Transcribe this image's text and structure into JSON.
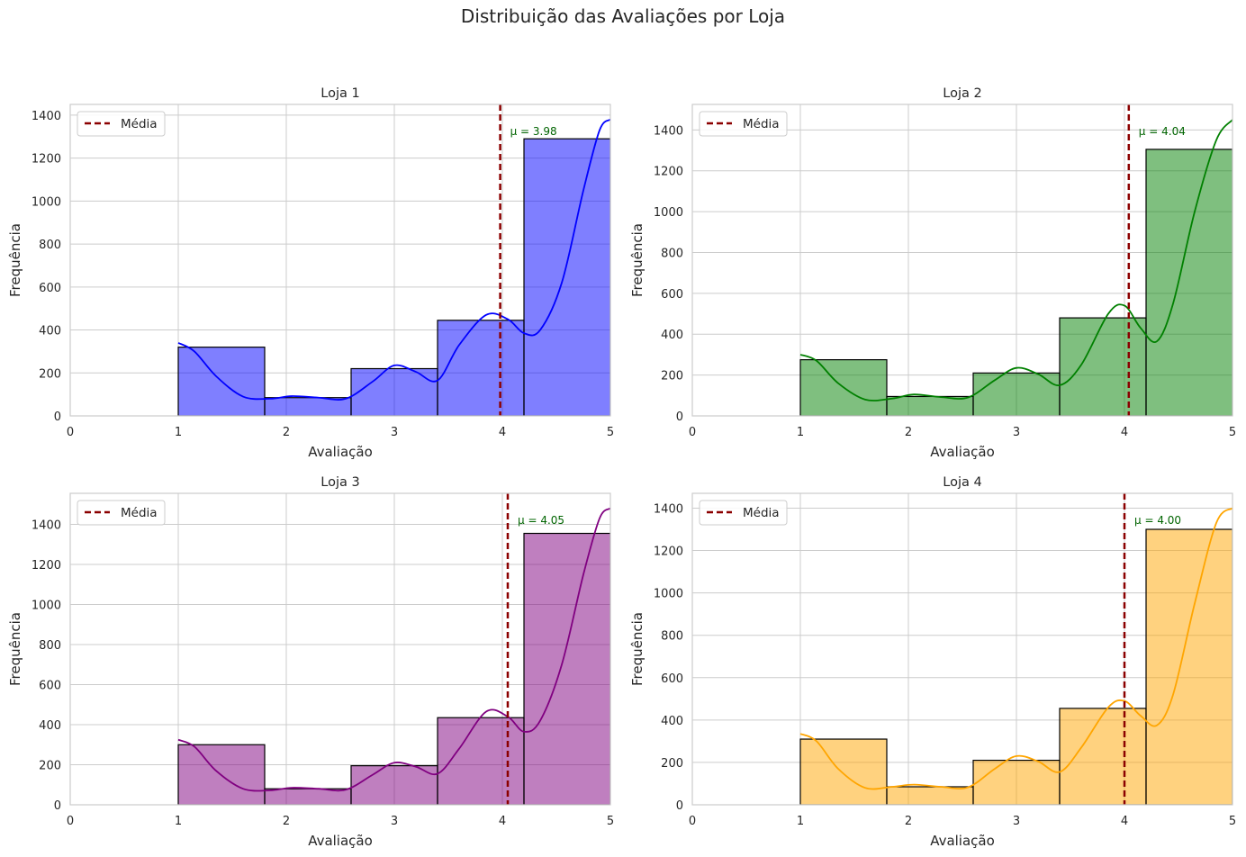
{
  "figure_title": "Distribuição das Avaliações por Loja",
  "colors": {
    "mean_line": "#8b0000",
    "mean_text": "#006400",
    "grid": "#cccccc",
    "bar_edge": "#000000"
  },
  "chart_data": [
    {
      "type": "bar",
      "title": "Loja 1",
      "xlabel": "Avaliação",
      "ylabel": "Frequência",
      "color": "#0000ff",
      "bin_edges": [
        1,
        1.8,
        2.6,
        3.4,
        4.2,
        5
      ],
      "values": [
        320,
        85,
        220,
        445,
        1290
      ],
      "kde": [
        [
          1.0,
          340
        ],
        [
          1.15,
          300
        ],
        [
          1.35,
          185
        ],
        [
          1.6,
          90
        ],
        [
          1.85,
          80
        ],
        [
          2.05,
          92
        ],
        [
          2.3,
          85
        ],
        [
          2.55,
          80
        ],
        [
          2.8,
          160
        ],
        [
          3.0,
          235
        ],
        [
          3.2,
          205
        ],
        [
          3.4,
          165
        ],
        [
          3.6,
          330
        ],
        [
          3.85,
          470
        ],
        [
          4.05,
          450
        ],
        [
          4.2,
          385
        ],
        [
          4.35,
          400
        ],
        [
          4.55,
          620
        ],
        [
          4.75,
          1050
        ],
        [
          4.9,
          1330
        ],
        [
          5.0,
          1380
        ]
      ],
      "mean": 3.98,
      "mean_label": "μ = 3.98",
      "legend_label": "Média",
      "xlim": [
        0,
        5
      ],
      "ylim": [
        0,
        1450
      ],
      "xticks": [
        0,
        1,
        2,
        3,
        4,
        5
      ],
      "yticks": [
        0,
        200,
        400,
        600,
        800,
        1000,
        1200,
        1400
      ]
    },
    {
      "type": "bar",
      "title": "Loja 2",
      "xlabel": "Avaliação",
      "ylabel": "Frequência",
      "color": "#008000",
      "bin_edges": [
        1,
        1.8,
        2.6,
        3.4,
        4.2,
        5
      ],
      "values": [
        275,
        95,
        210,
        480,
        1305
      ],
      "kde": [
        [
          1.0,
          300
        ],
        [
          1.15,
          270
        ],
        [
          1.35,
          160
        ],
        [
          1.6,
          80
        ],
        [
          1.85,
          85
        ],
        [
          2.05,
          105
        ],
        [
          2.3,
          92
        ],
        [
          2.55,
          90
        ],
        [
          2.8,
          175
        ],
        [
          3.0,
          235
        ],
        [
          3.2,
          205
        ],
        [
          3.4,
          150
        ],
        [
          3.6,
          250
        ],
        [
          3.85,
          500
        ],
        [
          4.0,
          540
        ],
        [
          4.15,
          430
        ],
        [
          4.3,
          365
        ],
        [
          4.45,
          550
        ],
        [
          4.65,
          1000
        ],
        [
          4.85,
          1350
        ],
        [
          5.0,
          1450
        ]
      ],
      "mean": 4.04,
      "mean_label": "μ = 4.04",
      "legend_label": "Média",
      "xlim": [
        0,
        5
      ],
      "ylim": [
        0,
        1525
      ],
      "xticks": [
        0,
        1,
        2,
        3,
        4,
        5
      ],
      "yticks": [
        0,
        200,
        400,
        600,
        800,
        1000,
        1200,
        1400
      ]
    },
    {
      "type": "bar",
      "title": "Loja 3",
      "xlabel": "Avaliação",
      "ylabel": "Frequência",
      "color": "#800080",
      "bin_edges": [
        1,
        1.8,
        2.6,
        3.4,
        4.2,
        5
      ],
      "values": [
        300,
        80,
        195,
        435,
        1355
      ],
      "kde": [
        [
          1.0,
          325
        ],
        [
          1.15,
          290
        ],
        [
          1.35,
          170
        ],
        [
          1.6,
          80
        ],
        [
          1.85,
          72
        ],
        [
          2.05,
          85
        ],
        [
          2.3,
          80
        ],
        [
          2.55,
          75
        ],
        [
          2.8,
          150
        ],
        [
          3.0,
          210
        ],
        [
          3.2,
          190
        ],
        [
          3.4,
          155
        ],
        [
          3.6,
          280
        ],
        [
          3.85,
          465
        ],
        [
          4.05,
          440
        ],
        [
          4.2,
          365
        ],
        [
          4.35,
          420
        ],
        [
          4.55,
          700
        ],
        [
          4.75,
          1150
        ],
        [
          4.9,
          1430
        ],
        [
          5.0,
          1480
        ]
      ],
      "mean": 4.05,
      "mean_label": "μ = 4.05",
      "legend_label": "Média",
      "xlim": [
        0,
        5
      ],
      "ylim": [
        0,
        1555
      ],
      "xticks": [
        0,
        1,
        2,
        3,
        4,
        5
      ],
      "yticks": [
        0,
        200,
        400,
        600,
        800,
        1000,
        1200,
        1400
      ]
    },
    {
      "type": "bar",
      "title": "Loja 4",
      "xlabel": "Avaliação",
      "ylabel": "Frequência",
      "color": "#ffa500",
      "bin_edges": [
        1,
        1.8,
        2.6,
        3.4,
        4.2,
        5
      ],
      "values": [
        310,
        85,
        210,
        455,
        1300
      ],
      "kde": [
        [
          1.0,
          335
        ],
        [
          1.15,
          300
        ],
        [
          1.35,
          170
        ],
        [
          1.6,
          80
        ],
        [
          1.85,
          85
        ],
        [
          2.05,
          95
        ],
        [
          2.3,
          85
        ],
        [
          2.55,
          82
        ],
        [
          2.8,
          170
        ],
        [
          3.0,
          230
        ],
        [
          3.2,
          205
        ],
        [
          3.4,
          155
        ],
        [
          3.6,
          270
        ],
        [
          3.85,
          460
        ],
        [
          4.0,
          490
        ],
        [
          4.15,
          420
        ],
        [
          4.3,
          375
        ],
        [
          4.45,
          520
        ],
        [
          4.65,
          950
        ],
        [
          4.85,
          1330
        ],
        [
          5.0,
          1400
        ]
      ],
      "mean": 4.0,
      "mean_label": "μ = 4.00",
      "legend_label": "Média",
      "xlim": [
        0,
        5
      ],
      "ylim": [
        0,
        1470
      ],
      "xticks": [
        0,
        1,
        2,
        3,
        4,
        5
      ],
      "yticks": [
        0,
        200,
        400,
        600,
        800,
        1000,
        1200,
        1400
      ]
    }
  ]
}
